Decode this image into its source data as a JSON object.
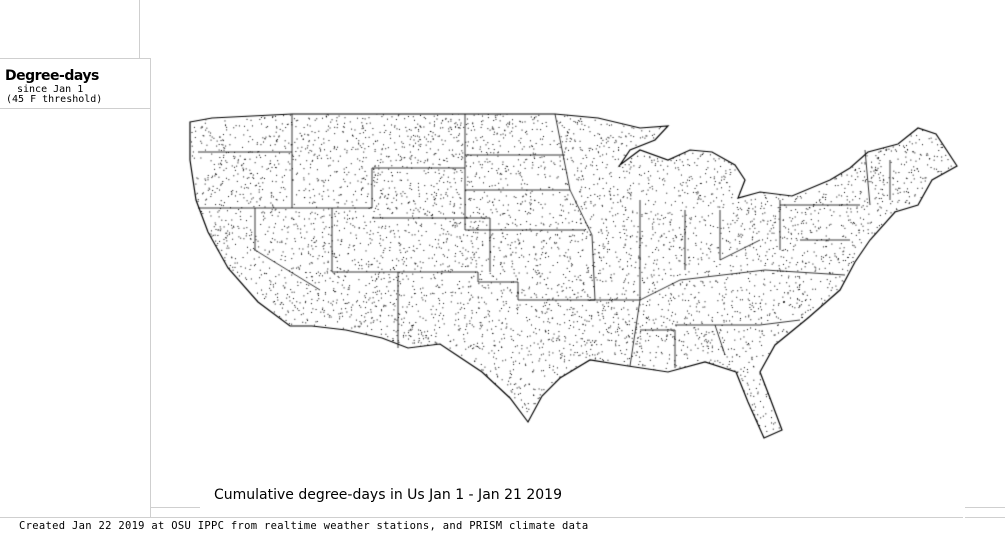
{
  "legend": {
    "title": "Degree-days",
    "subtitle": "since Jan 1",
    "threshold": "(45 F threshold)"
  },
  "map": {
    "title": "Cumulative degree-days in Us  Jan 1 - Jan 21 2019",
    "line_color": "#000000",
    "frame_color": "#cfcfcf"
  },
  "footer": {
    "credit": "Created Jan 22 2019 at OSU IPPC from  realtime weather stations, and PRISM climate data"
  }
}
